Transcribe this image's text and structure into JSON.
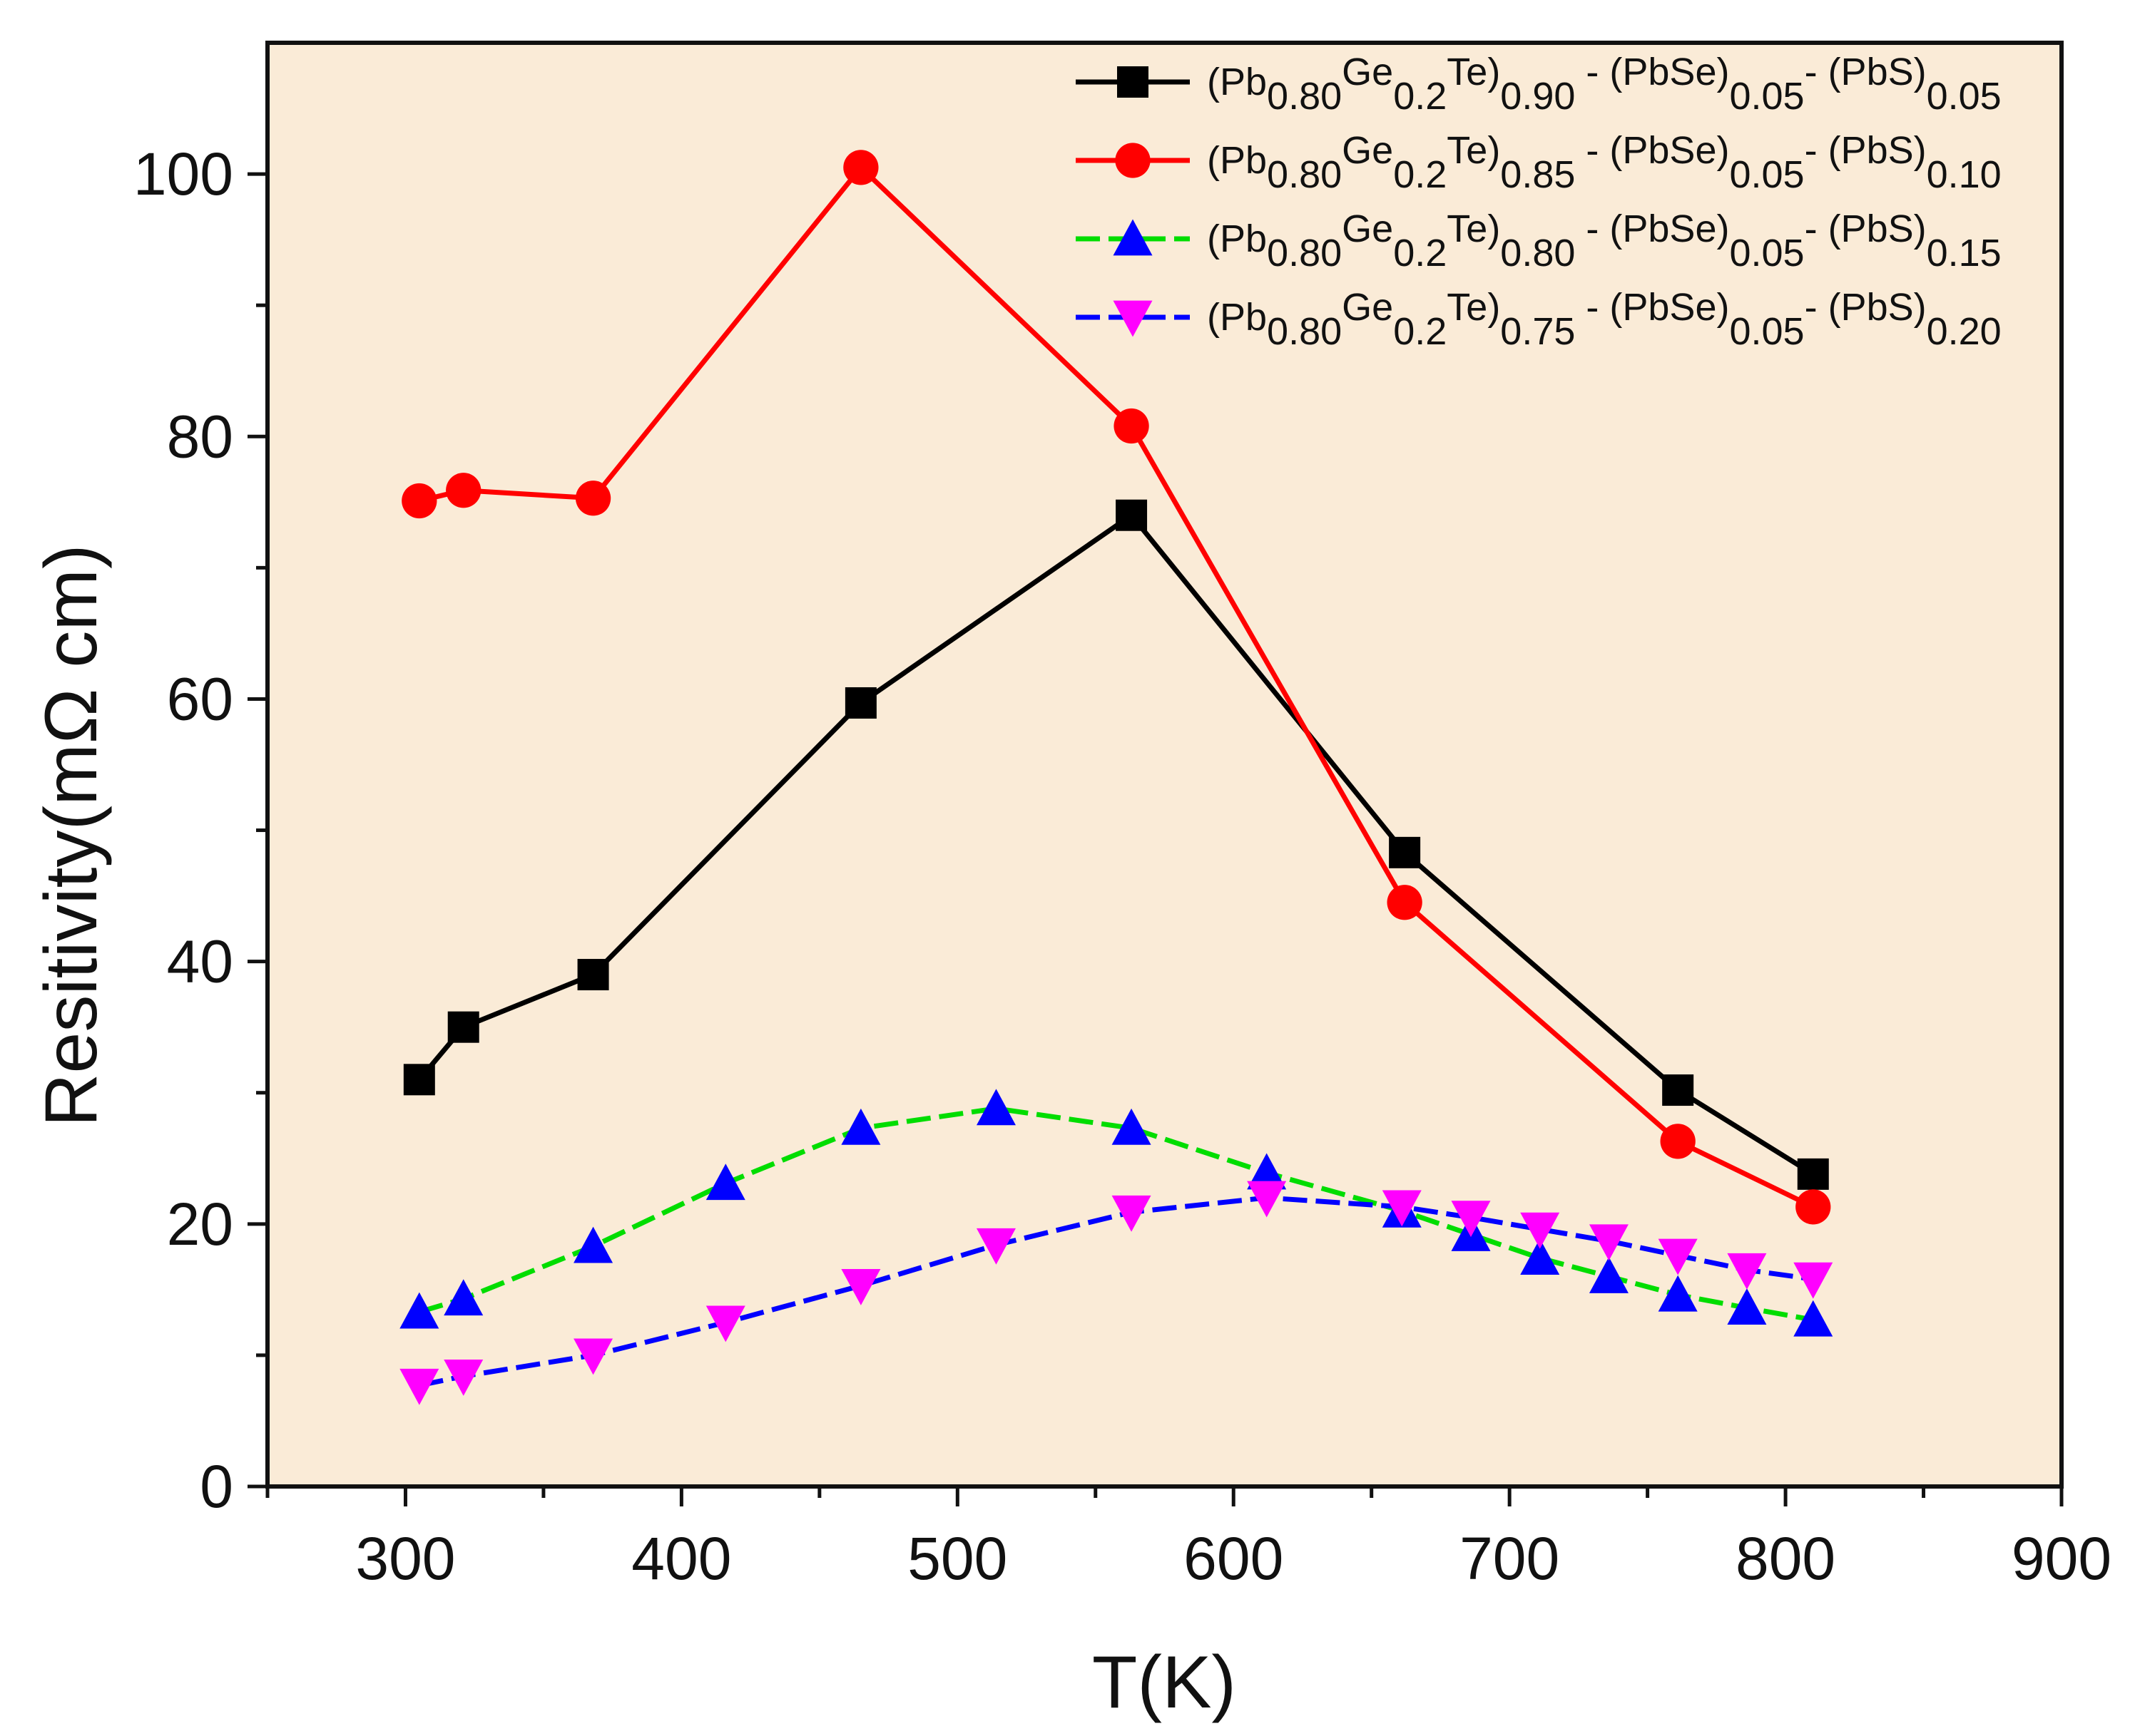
{
  "colors": {
    "plot_background": "#FAEBD7",
    "axis": "#111111",
    "series": [
      "#000000",
      "#FF0000",
      "#00DD00",
      "#0000FF"
    ],
    "markers": [
      "#000000",
      "#FF0000",
      "#0000FF",
      "#FF00FF"
    ]
  },
  "chart_data": {
    "type": "line",
    "title": "",
    "xlabel": "T(K)",
    "ylabel": "Resitivity(mΩ cm)",
    "xlim": [
      250,
      900
    ],
    "ylim": [
      0,
      110
    ],
    "x_ticks": [
      "300",
      "400",
      "500",
      "600",
      "700",
      "800",
      "900"
    ],
    "y_ticks": [
      "0",
      "20",
      "40",
      "60",
      "80",
      "100"
    ],
    "legend_position": "top-right",
    "series": [
      {
        "name": "(Pb0.80Ge0.2Te)0.90 - (PbSe)0.05- (PbS)0.05",
        "legend": {
          "a": "(Pb",
          "b": "0.80",
          "c": "Ge",
          "d": "0.2",
          "e": "Te)",
          "f": "0.90",
          "g": " - (PbSe)",
          "h": "0.05",
          "i": "- (PbS)",
          "j": "0.05"
        },
        "marker": "square",
        "dashed": false,
        "x": [
          305,
          321,
          368,
          465,
          563,
          662,
          761,
          810
        ],
        "y": [
          31,
          35,
          39,
          59.7,
          74,
          48.3,
          30.2,
          23.8
        ]
      },
      {
        "name": "(Pb0.80Ge0.2Te)0.85 - (PbSe)0.05- (PbS)0.10",
        "legend": {
          "a": "(Pb",
          "b": "0.80",
          "c": "Ge",
          "d": "0.2",
          "e": "Te)",
          "f": "0.85",
          "g": " - (PbSe)",
          "h": "0.05",
          "i": "- (PbS)",
          "j": "0.10"
        },
        "marker": "circle",
        "dashed": false,
        "x": [
          305,
          321,
          368,
          465,
          563,
          662,
          761,
          810
        ],
        "y": [
          75.1,
          75.9,
          75.3,
          100.5,
          80.8,
          44.5,
          26.3,
          21.3
        ]
      },
      {
        "name": "(Pb0.80Ge0.2Te)0.80 - (PbSe)0.05- (PbS)0.15",
        "legend": {
          "a": "(Pb",
          "b": "0.80",
          "c": "Ge",
          "d": "0.2",
          "e": "Te)",
          "f": "0.80",
          "g": " - (PbSe)",
          "h": "0.05",
          "i": "- (PbS)",
          "j": "0.15"
        },
        "marker": "triangle-up",
        "dashed": true,
        "x": [
          305,
          321,
          368,
          416,
          465,
          514,
          563,
          612,
          661,
          686,
          711,
          736,
          761,
          786,
          810
        ],
        "y": [
          13.3,
          14.3,
          18.3,
          23.1,
          27.3,
          28.8,
          27.3,
          23.9,
          21,
          19.2,
          17.4,
          16,
          14.6,
          13.6,
          12.7
        ]
      },
      {
        "name": "(Pb0.80Ge0.2Te)0.75 - (PbSe)0.05- (PbS)0.20",
        "legend": {
          "a": "(Pb",
          "b": "0.80",
          "c": "Ge",
          "d": "0.2",
          "e": "Te)",
          "f": "0.75",
          "g": " - (PbSe)",
          "h": "0.05",
          "i": "- (PbS)",
          "j": "0.20"
        },
        "marker": "triangle-down",
        "dashed": true,
        "x": [
          305,
          321,
          368,
          416,
          465,
          514,
          563,
          612,
          661,
          686,
          711,
          736,
          761,
          786,
          810
        ],
        "y": [
          7.7,
          8.4,
          10,
          12.5,
          15.3,
          18.4,
          20.9,
          22,
          21.3,
          20.5,
          19.6,
          18.7,
          17.6,
          16.5,
          15.8
        ]
      }
    ]
  }
}
